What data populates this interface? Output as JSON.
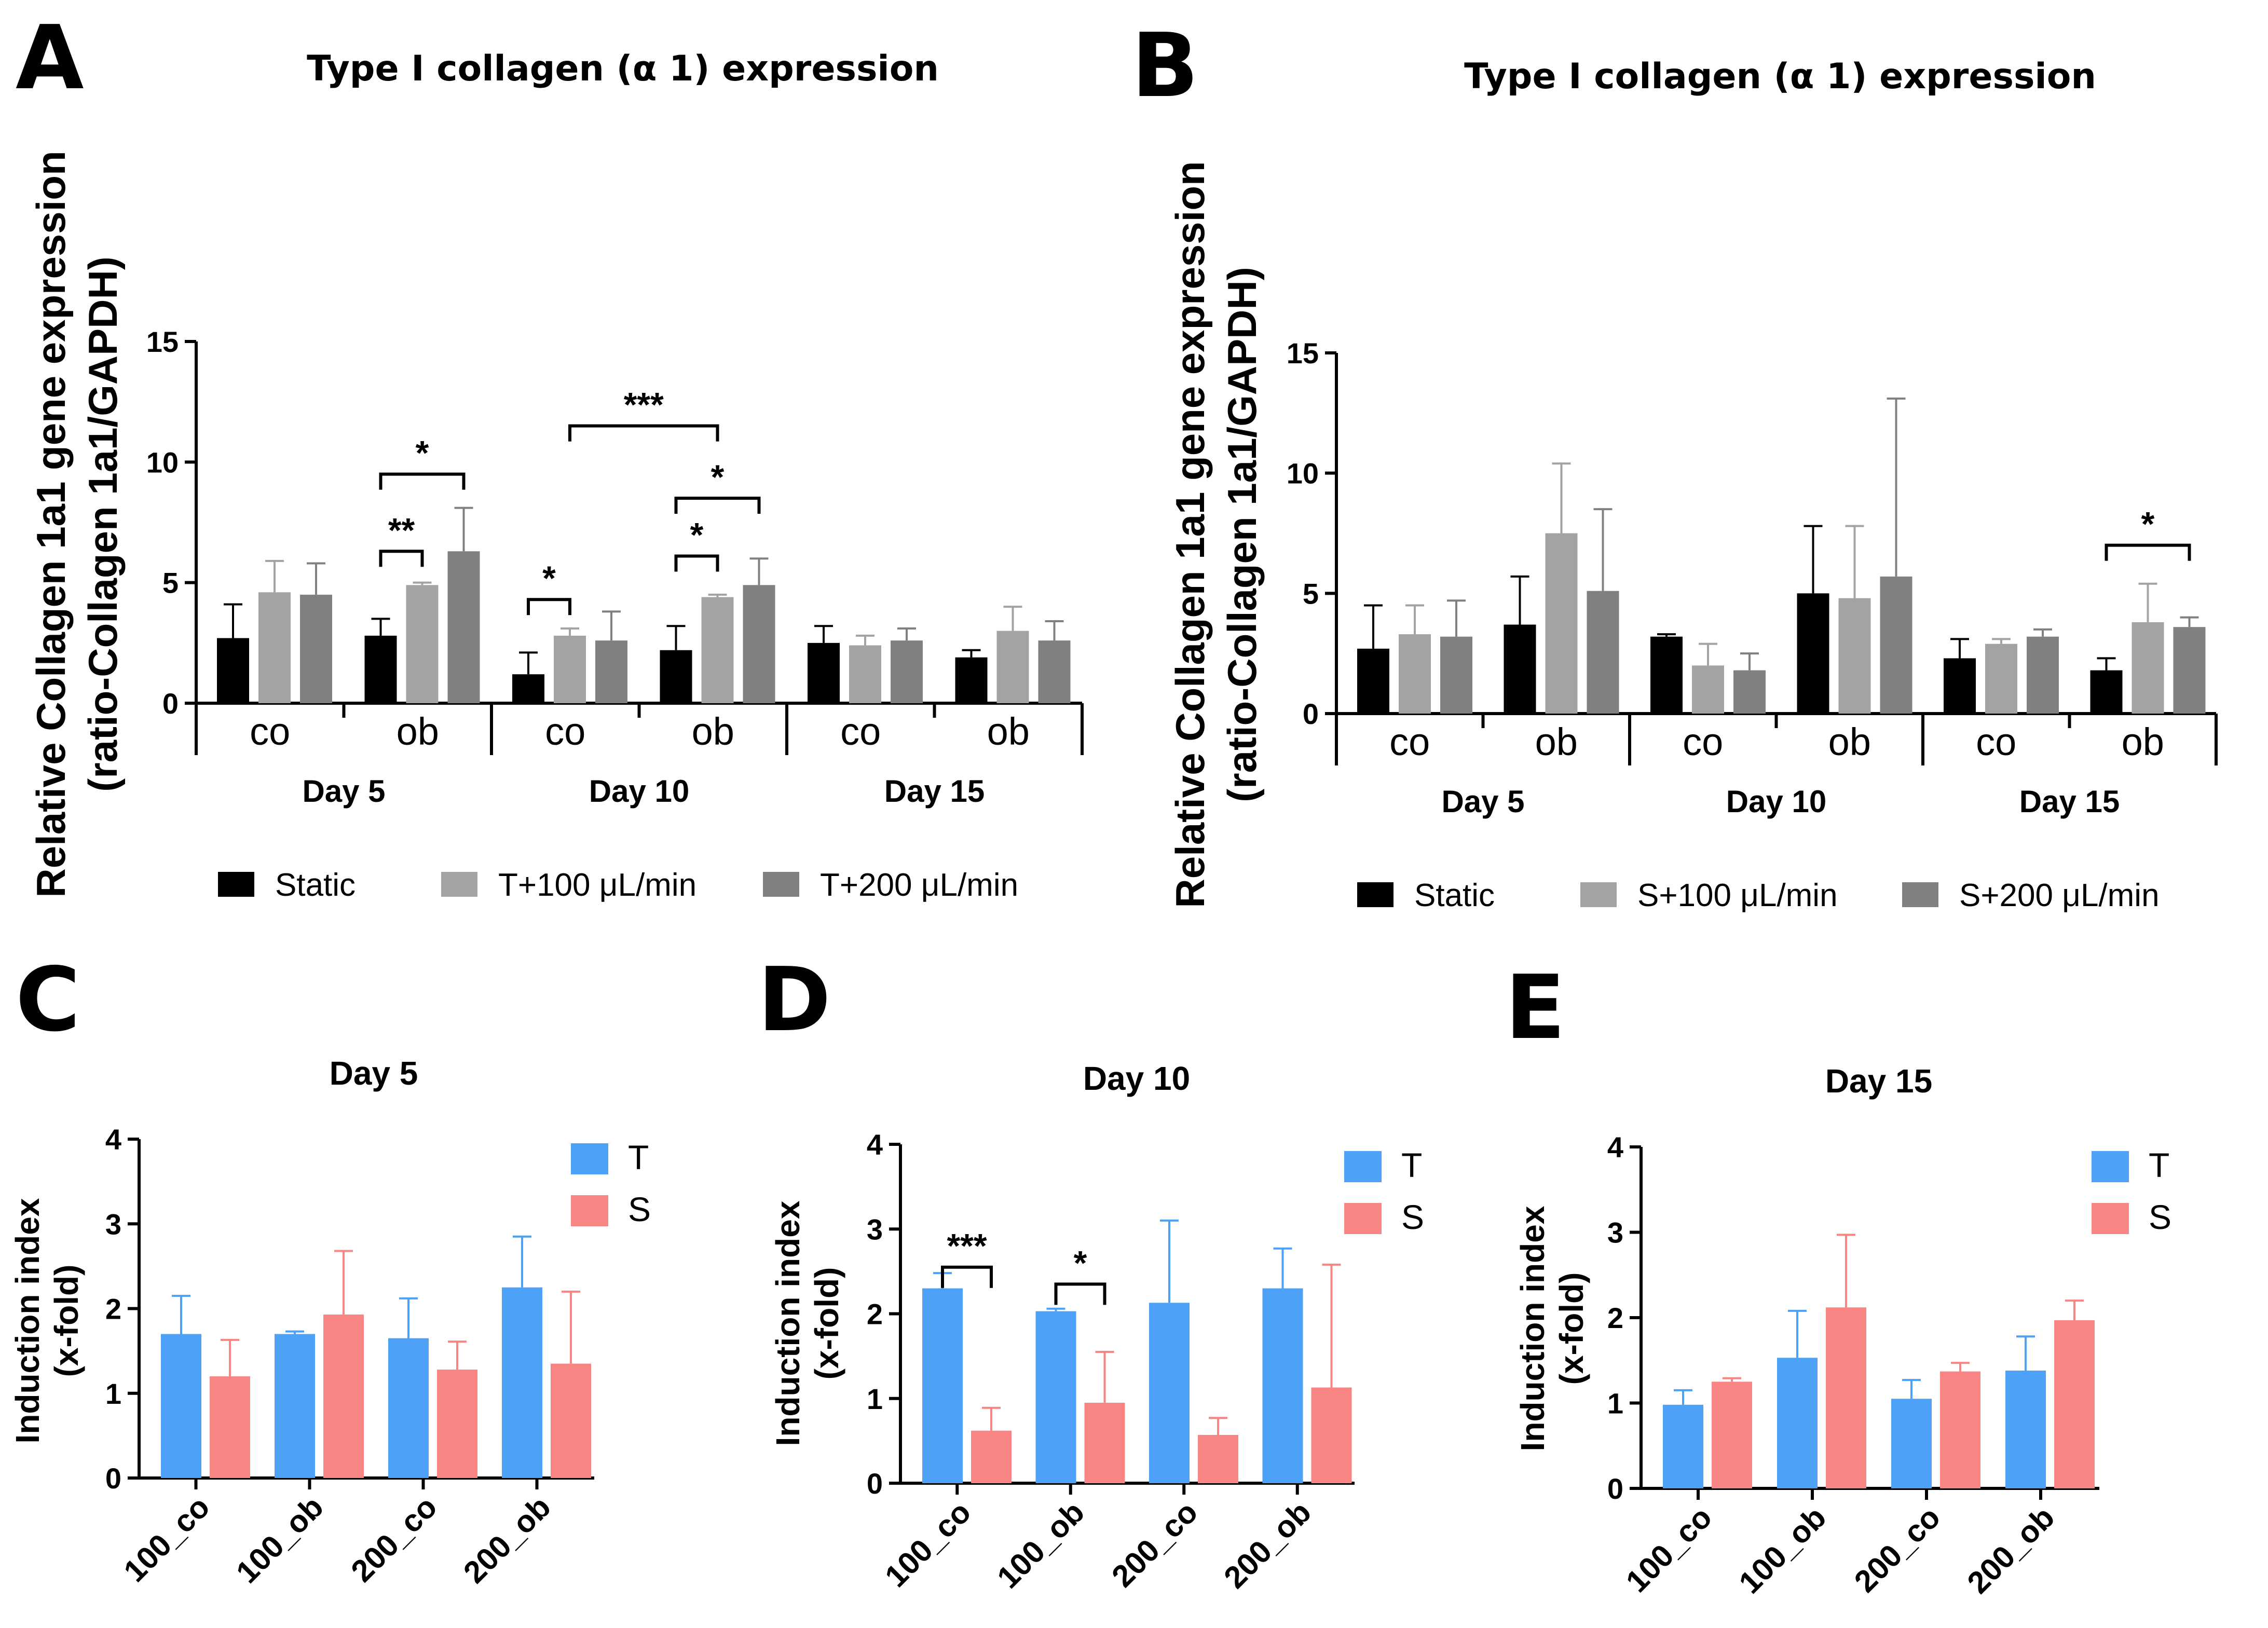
{
  "panels": {
    "A": {
      "letter": "A",
      "title": "Type I collagen (α 1) expression",
      "ylabel1": "Relative Collagen 1a1 gene expression",
      "ylabel2": "(ratio-Collagen 1a1/GAPDH)"
    },
    "B": {
      "letter": "B",
      "title": "Type I collagen (α 1) expression",
      "ylabel1": "Relative Collagen 1a1 gene expression",
      "ylabel2": "(ratio-Collagen 1a1/GAPDH)"
    },
    "C": {
      "letter": "C",
      "title": "Day 5",
      "ylabel1": "Induction index",
      "ylabel2": "(x-fold)"
    },
    "D": {
      "letter": "D",
      "title": "Day 10",
      "ylabel1": "Induction index",
      "ylabel2": "(x-fold)"
    },
    "E": {
      "letter": "E",
      "title": "Day 15",
      "ylabel1": "Induction index",
      "ylabel2": "(x-fold)"
    }
  },
  "colors": {
    "static": "#000000",
    "flow100": "#a3a3a3",
    "flow200": "#808080",
    "T": "#4da1f7",
    "S": "#f98484"
  },
  "chart_data": [
    {
      "id": "A",
      "type": "bar",
      "title": "Type I collagen (α 1) expression",
      "ylabel": "Relative Collagen 1a1 gene expression (ratio-Collagen 1a1/GAPDH)",
      "ylim": [
        0,
        15
      ],
      "yticks": [
        "0",
        "5",
        "10",
        "15"
      ],
      "groups": [
        "Day 5",
        "Day 10",
        "Day 15"
      ],
      "categories": [
        "co",
        "ob",
        "co",
        "ob",
        "co",
        "ob"
      ],
      "series": [
        {
          "name": "Static",
          "values": [
            2.7,
            2.8,
            1.2,
            2.2,
            2.5,
            1.9
          ],
          "errors": [
            1.4,
            0.7,
            0.9,
            1.0,
            0.7,
            0.3
          ]
        },
        {
          "name": "T+100 μL/min",
          "values": [
            4.6,
            4.9,
            2.8,
            4.4,
            2.4,
            3.0
          ],
          "errors": [
            1.3,
            0.1,
            0.3,
            0.1,
            0.4,
            1.0
          ]
        },
        {
          "name": "T+200 μL/min",
          "values": [
            4.5,
            6.3,
            2.6,
            4.9,
            2.6,
            2.6
          ],
          "errors": [
            1.3,
            1.8,
            1.2,
            1.1,
            0.5,
            0.8
          ]
        }
      ],
      "significance": [
        {
          "cat": 1,
          "from": 0,
          "to": 1,
          "label": "**",
          "y": 6.3
        },
        {
          "cat": 1,
          "from": 0,
          "to": 2,
          "label": "*",
          "y": 9.5
        },
        {
          "cat": 2,
          "from": 0,
          "to": 1,
          "label": "*",
          "y": 4.3
        },
        {
          "cat": 3,
          "from": 0,
          "to": 1,
          "label": "*",
          "y": 6.1
        },
        {
          "cat": 3,
          "from": 0,
          "to": 2,
          "label": "*",
          "y": 8.5
        },
        {
          "cat2": [
            2,
            3
          ],
          "from": 1,
          "to": 1,
          "label": "***",
          "y": 11.5
        }
      ]
    },
    {
      "id": "B",
      "type": "bar",
      "title": "Type I collagen (α 1) expression",
      "ylabel": "Relative Collagen 1a1 gene expression (ratio-Collagen 1a1/GAPDH)",
      "ylim": [
        0,
        15
      ],
      "yticks": [
        "0",
        "5",
        "10",
        "15"
      ],
      "groups": [
        "Day 5",
        "Day 10",
        "Day 15"
      ],
      "categories": [
        "co",
        "ob",
        "co",
        "ob",
        "co",
        "ob"
      ],
      "series": [
        {
          "name": "Static",
          "values": [
            2.7,
            3.7,
            3.2,
            5.0,
            2.3,
            1.8
          ],
          "errors": [
            1.8,
            2.0,
            0.1,
            2.8,
            0.8,
            0.5
          ]
        },
        {
          "name": "S+100 μL/min",
          "values": [
            3.3,
            7.5,
            2.0,
            4.8,
            2.9,
            3.8
          ],
          "errors": [
            1.2,
            2.9,
            0.9,
            3.0,
            0.2,
            1.6
          ]
        },
        {
          "name": "S+200 μL/min",
          "values": [
            3.2,
            5.1,
            1.8,
            5.7,
            3.2,
            3.6
          ],
          "errors": [
            1.5,
            3.4,
            0.7,
            7.4,
            0.3,
            0.4
          ]
        }
      ],
      "significance": [
        {
          "cat": 5,
          "from": 0,
          "to": 2,
          "label": "*",
          "y": 7.0
        }
      ]
    },
    {
      "id": "C",
      "type": "bar",
      "title": "Day 5",
      "ylabel": "Induction index (x-fold)",
      "ylim": [
        0,
        4
      ],
      "yticks": [
        "0",
        "1",
        "2",
        "3",
        "4"
      ],
      "categories": [
        "100_co",
        "100_ob",
        "200_co",
        "200_ob"
      ],
      "series": [
        {
          "name": "T",
          "values": [
            1.7,
            1.7,
            1.65,
            2.25
          ],
          "errors": [
            0.45,
            0.03,
            0.47,
            0.6
          ]
        },
        {
          "name": "S",
          "values": [
            1.2,
            1.93,
            1.28,
            1.35
          ],
          "errors": [
            0.43,
            0.75,
            0.33,
            0.85
          ]
        }
      ],
      "significance": []
    },
    {
      "id": "D",
      "type": "bar",
      "title": "Day 10",
      "ylabel": "Induction index (x-fold)",
      "ylim": [
        0,
        4
      ],
      "yticks": [
        "0",
        "1",
        "2",
        "3",
        "4"
      ],
      "categories": [
        "100_co",
        "100_ob",
        "200_co",
        "200_ob"
      ],
      "series": [
        {
          "name": "T",
          "values": [
            2.3,
            2.03,
            2.13,
            2.3
          ],
          "errors": [
            0.18,
            0.03,
            0.97,
            0.47
          ]
        },
        {
          "name": "S",
          "values": [
            0.62,
            0.95,
            0.57,
            1.13
          ],
          "errors": [
            0.27,
            0.6,
            0.2,
            1.45
          ]
        }
      ],
      "significance": [
        {
          "cat": 0,
          "from": 0,
          "to": 1,
          "label": "***",
          "y": 2.55
        },
        {
          "cat": 1,
          "from": 0,
          "to": 1,
          "label": "*",
          "y": 2.35
        }
      ]
    },
    {
      "id": "E",
      "type": "bar",
      "title": "Day 15",
      "ylabel": "Induction index (x-fold)",
      "ylim": [
        0,
        4
      ],
      "yticks": [
        "0",
        "1",
        "2",
        "3",
        "4"
      ],
      "categories": [
        "100_co",
        "100_ob",
        "200_co",
        "200_ob"
      ],
      "series": [
        {
          "name": "T",
          "values": [
            0.98,
            1.53,
            1.05,
            1.38
          ],
          "errors": [
            0.17,
            0.55,
            0.22,
            0.4
          ]
        },
        {
          "name": "S",
          "values": [
            1.25,
            2.12,
            1.37,
            1.97
          ],
          "errors": [
            0.04,
            0.85,
            0.1,
            0.23
          ]
        }
      ],
      "significance": []
    }
  ]
}
